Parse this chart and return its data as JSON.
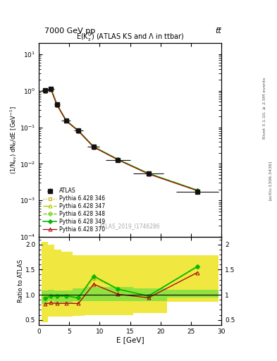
{
  "title_top": "7000 GeV pp",
  "title_top_right": "tt̅",
  "plot_title": "E(K$_s^0$) (ATLAS KS and Λ in ttbar)",
  "watermark": "ATLAS_2019_I1746286",
  "right_label": "Rivet 3.1.10, ≥ 2.5M events",
  "right_label2": "[arXiv:1306.3436]",
  "xlabel": "E [GeV]",
  "ylabel": "(1/N$_{ev}$) dN$_K$/dE [GeV$^{-1}$]",
  "ylabel_ratio": "Ratio to ATLAS",
  "xlim": [
    0,
    30
  ],
  "ylim_log": [
    0.0001,
    20
  ],
  "ylim_ratio": [
    0.4,
    2.15
  ],
  "x_data": [
    1.0,
    2.0,
    3.0,
    4.5,
    6.5,
    9.0,
    13.0,
    18.0,
    26.0
  ],
  "atlas_y": [
    1.02,
    1.15,
    0.42,
    0.155,
    0.082,
    0.03,
    0.013,
    0.0055,
    0.0017
  ],
  "atlas_xerr": [
    0.5,
    0.5,
    0.5,
    0.75,
    0.75,
    1.0,
    2.0,
    2.5,
    3.5
  ],
  "atlas_yerr": [
    0.05,
    0.06,
    0.02,
    0.008,
    0.004,
    0.002,
    0.0007,
    0.0003,
    0.0001
  ],
  "py346_y": [
    1.0,
    1.12,
    0.415,
    0.153,
    0.081,
    0.0295,
    0.0132,
    0.00545,
    0.0019
  ],
  "py347_y": [
    1.0,
    1.12,
    0.415,
    0.153,
    0.081,
    0.0295,
    0.0132,
    0.00545,
    0.0019
  ],
  "py348_y": [
    1.0,
    1.12,
    0.415,
    0.153,
    0.081,
    0.0295,
    0.0132,
    0.00545,
    0.0019
  ],
  "py349_y": [
    1.0,
    1.12,
    0.415,
    0.153,
    0.081,
    0.0295,
    0.0132,
    0.00545,
    0.0019
  ],
  "py370_y": [
    0.985,
    1.105,
    0.408,
    0.15,
    0.079,
    0.0288,
    0.0129,
    0.0053,
    0.00185
  ],
  "ratio_346": [
    0.935,
    0.97,
    0.97,
    0.978,
    0.93,
    1.32,
    1.13,
    0.975,
    1.56
  ],
  "ratio_347": [
    0.935,
    0.97,
    0.97,
    0.978,
    0.938,
    1.37,
    1.12,
    0.975,
    1.56
  ],
  "ratio_348": [
    0.935,
    0.97,
    0.97,
    0.978,
    0.938,
    1.37,
    1.11,
    0.975,
    1.56
  ],
  "ratio_349": [
    0.935,
    0.97,
    0.97,
    0.978,
    0.938,
    1.37,
    1.11,
    0.975,
    1.56
  ],
  "ratio_370": [
    0.815,
    0.84,
    0.825,
    0.83,
    0.825,
    1.21,
    1.01,
    0.94,
    1.44
  ],
  "band_edges": [
    0.5,
    1.5,
    2.5,
    3.75,
    5.5,
    7.5,
    11.0,
    15.5,
    21.0,
    29.5
  ],
  "band_yellow_lo": [
    0.45,
    0.56,
    0.56,
    0.56,
    0.58,
    0.6,
    0.6,
    0.63,
    0.86
  ],
  "band_yellow_hi": [
    2.05,
    2.0,
    1.9,
    1.85,
    1.78,
    1.78,
    1.78,
    1.78,
    1.78
  ],
  "band_green_lo": [
    0.82,
    0.88,
    0.85,
    0.845,
    0.88,
    0.88,
    0.88,
    0.88,
    0.95
  ],
  "band_green_hi": [
    1.08,
    1.1,
    1.08,
    1.08,
    1.12,
    1.15,
    1.15,
    1.12,
    1.1
  ],
  "color_346": "#ccaa00",
  "color_347": "#aacc00",
  "color_348": "#66cc00",
  "color_349": "#00bb00",
  "color_370": "#aa1111",
  "color_atlas": "#111111",
  "bg_color": "#ffffff",
  "legend_order": [
    "ATLAS",
    "Pythia 6.428 346",
    "Pythia 6.428 347",
    "Pythia 6.428 348",
    "Pythia 6.428 349",
    "Pythia 6.428 370"
  ]
}
